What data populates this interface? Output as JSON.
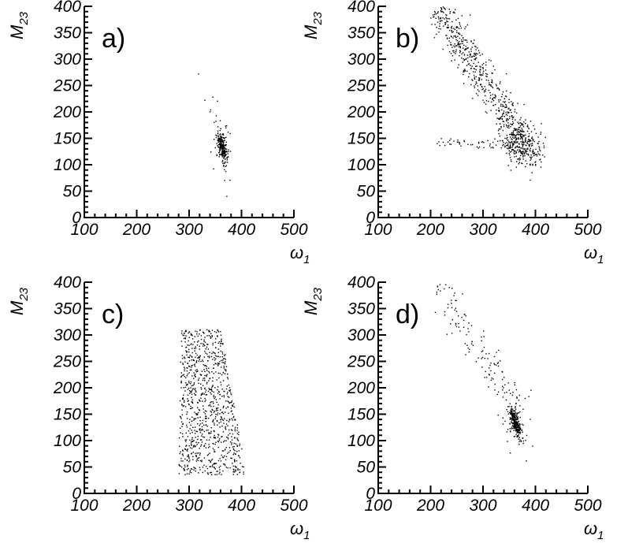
{
  "chart_data": [
    {
      "type": "scatter",
      "panel_label": "a)",
      "xlabel": "ω",
      "xlabel_sub": "1",
      "ylabel": "M",
      "ylabel_sub": "23",
      "xlim": [
        100,
        500
      ],
      "ylim": [
        0,
        400
      ],
      "x_ticks": [
        "100",
        "200",
        "300",
        "400",
        "500"
      ],
      "y_ticks": [
        "0",
        "50",
        "100",
        "150",
        "200",
        "250",
        "300",
        "350",
        "400"
      ],
      "series": [
        {
          "color": "#000000",
          "clusters": [
            {
              "cx": 363,
              "cy": 133,
              "sx": 5,
              "sy": 14,
              "n": 240,
              "rho": -0.6
            },
            {
              "cx": 362,
              "cy": 140,
              "sx": 12,
              "sy": 35,
              "n": 30,
              "rho": -0.4
            }
          ],
          "points": [
            [
              318,
              272
            ],
            [
              330,
              222
            ],
            [
              340,
              200
            ],
            [
              348,
              180
            ],
            [
              372,
              40
            ],
            [
              368,
              70
            ],
            [
              355,
              160
            ]
          ]
        }
      ]
    },
    {
      "type": "scatter",
      "panel_label": "b)",
      "xlabel": "ω",
      "xlabel_sub": "1",
      "ylabel": "M",
      "ylabel_sub": "23",
      "xlim": [
        100,
        500
      ],
      "ylim": [
        0,
        400
      ],
      "x_ticks": [
        "100",
        "200",
        "300",
        "400",
        "500"
      ],
      "y_ticks": [
        "0",
        "50",
        "100",
        "150",
        "200",
        "250",
        "300",
        "350",
        "400"
      ],
      "series": [
        {
          "color": "#000000",
          "clusters": [
            {
              "cx": 375,
              "cy": 140,
              "sx": 18,
              "sy": 22,
              "n": 330,
              "rho": -0.3
            }
          ],
          "bands": [
            {
              "x0": 215,
              "y0": 395,
              "x1": 370,
              "y1": 150,
              "width": 14,
              "n": 520
            },
            {
              "x0": 210,
              "y0": 143,
              "x1": 360,
              "y1": 135,
              "width": 6,
              "n": 60
            }
          ]
        }
      ]
    },
    {
      "type": "scatter",
      "panel_label": "c)",
      "xlabel": "ω",
      "xlabel_sub": "1",
      "ylabel": "M",
      "ylabel_sub": "23",
      "xlim": [
        100,
        500
      ],
      "ylim": [
        0,
        400
      ],
      "x_ticks": [
        "100",
        "200",
        "300",
        "400",
        "500"
      ],
      "y_ticks": [
        "0",
        "50",
        "100",
        "150",
        "200",
        "250",
        "300",
        "350",
        "400"
      ],
      "series": [
        {
          "color": "#000000",
          "regions": [
            {
              "x_min": 265,
              "x_max": 405,
              "y_min": 35,
              "y_max": 310,
              "n": 950,
              "left_top": 285,
              "left_bottom": 280,
              "right_top": 360,
              "right_bottom": 410
            }
          ]
        }
      ]
    },
    {
      "type": "scatter",
      "panel_label": "d)",
      "xlabel": "ω",
      "xlabel_sub": "1",
      "ylabel": "M",
      "ylabel_sub": "23",
      "xlim": [
        100,
        500
      ],
      "ylim": [
        0,
        400
      ],
      "x_ticks": [
        "100",
        "200",
        "300",
        "400",
        "500"
      ],
      "y_ticks": [
        "0",
        "50",
        "100",
        "150",
        "200",
        "250",
        "300",
        "350",
        "400"
      ],
      "series": [
        {
          "color": "#000000",
          "clusters": [
            {
              "cx": 362,
              "cy": 133,
              "sx": 5,
              "sy": 14,
              "n": 260,
              "rho": -0.6
            },
            {
              "cx": 362,
              "cy": 135,
              "sx": 14,
              "sy": 30,
              "n": 50,
              "rho": -0.3
            }
          ],
          "bands": [
            {
              "x0": 215,
              "y0": 395,
              "x1": 370,
              "y1": 150,
              "width": 14,
              "n": 130
            }
          ]
        }
      ]
    }
  ]
}
